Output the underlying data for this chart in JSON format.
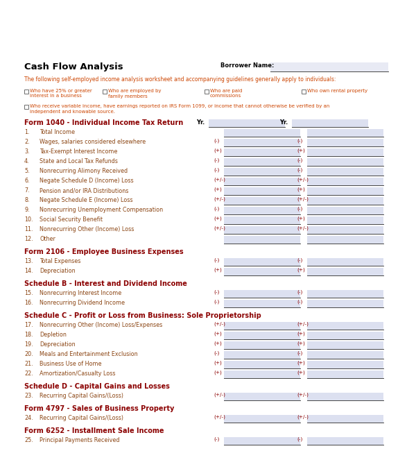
{
  "title": "Cash Flow Analysis",
  "borrower_label": "Borrower Name:",
  "subtitle": "The following self-employed income analysis worksheet and accompanying guidelines generally apply to individuals:",
  "checkboxes": [
    "Who have 25% or greater\ninterest in a business",
    "Who are employed by\nfamily members",
    "Who are paid\ncommissions",
    "Who own rental property"
  ],
  "checkbox5": "Who receive variable income, have earnings reported on IRS Form 1099, or income that cannot otherwise be verified by an\nindependent and knowable source.",
  "section1_title": "Form 1040 - Individual Income Tax Return",
  "yr_label": "Yr.",
  "items_1040": [
    {
      "num": "1.",
      "label": "Total Income",
      "sign": ""
    },
    {
      "num": "2.",
      "label": "Wages, salaries considered elsewhere",
      "sign": "(-)"
    },
    {
      "num": "3.",
      "label": "Tax-Exempt Interest Income",
      "sign": "(+)"
    },
    {
      "num": "4.",
      "label": "State and Local Tax Refunds",
      "sign": "(-)"
    },
    {
      "num": "5.",
      "label": "Nonrecurring Alimony Received",
      "sign": "(-)"
    },
    {
      "num": "6.",
      "label": "Negate Schedule D (Income) Loss",
      "sign": "(+/-)"
    },
    {
      "num": "7.",
      "label": "Pension and/or IRA Distributions",
      "sign": "(+)"
    },
    {
      "num": "8.",
      "label": "Negate Schedule E (Income) Loss",
      "sign": "(+/-)"
    },
    {
      "num": "9.",
      "label": "Nonrecurring Unemployment Compensation",
      "sign": "(-)"
    },
    {
      "num": "10.",
      "label": "Social Security Benefit",
      "sign": "(+)"
    },
    {
      "num": "11.",
      "label": "Nonrecurring Other (Income) Loss",
      "sign": "(+/-)"
    },
    {
      "num": "12.",
      "label": "Other",
      "sign": ""
    }
  ],
  "section2_title": "Form 2106 - Employee Business Expenses",
  "items_2106": [
    {
      "num": "13.",
      "label": "Total Expenses",
      "sign": "(-)"
    },
    {
      "num": "14.",
      "label": "Depreciation",
      "sign": "(+)"
    }
  ],
  "section3_title": "Schedule B - Interest and Dividend Income",
  "items_schedB": [
    {
      "num": "15.",
      "label": "Nonrecurring Interest Income",
      "sign": "(-)"
    },
    {
      "num": "16.",
      "label": "Nonrecurring Dividend Income",
      "sign": "(-)"
    }
  ],
  "section4_title": "Schedule C - Profit or Loss from Business: Sole Proprietorship",
  "items_schedC": [
    {
      "num": "17.",
      "label": "Nonrecurring Other (Income) Loss/Expenses",
      "sign": "(+/-)"
    },
    {
      "num": "18.",
      "label": "Depletion",
      "sign": "(+)"
    },
    {
      "num": "19.",
      "label": "Depreciation",
      "sign": "(+)"
    },
    {
      "num": "20.",
      "label": "Meals and Entertainment Exclusion",
      "sign": "(-)"
    },
    {
      "num": "21.",
      "label": "Business Use of Home",
      "sign": "(+)"
    },
    {
      "num": "22.",
      "label": "Amortization/Casualty Loss",
      "sign": "(+)"
    }
  ],
  "section5_title": "Schedule D - Capital Gains and Losses",
  "items_schedD": [
    {
      "num": "23.",
      "label": "Recurring Capital Gains/(Loss)",
      "sign": "(+/-)"
    }
  ],
  "section6_title": "Form 4797 - Sales of Business Property",
  "items_4797": [
    {
      "num": "24.",
      "label": "Recurring Capital Gains/(Loss)",
      "sign": "(+/-)"
    }
  ],
  "section7_title": "Form 6252 - Installment Sale Income",
  "items_6252": [
    {
      "num": "25.",
      "label": "Principal Payments Received",
      "sign": "(-)"
    }
  ],
  "bg_color": "#ffffff",
  "title_color": "#000000",
  "section_color": "#8B0000",
  "item_color": "#8B4513",
  "sign_color": "#8B0000",
  "subtitle_color": "#cc4400",
  "checkbox_color": "#cc4400",
  "input_box_color": "#dce0f0",
  "line_color": "#333333"
}
